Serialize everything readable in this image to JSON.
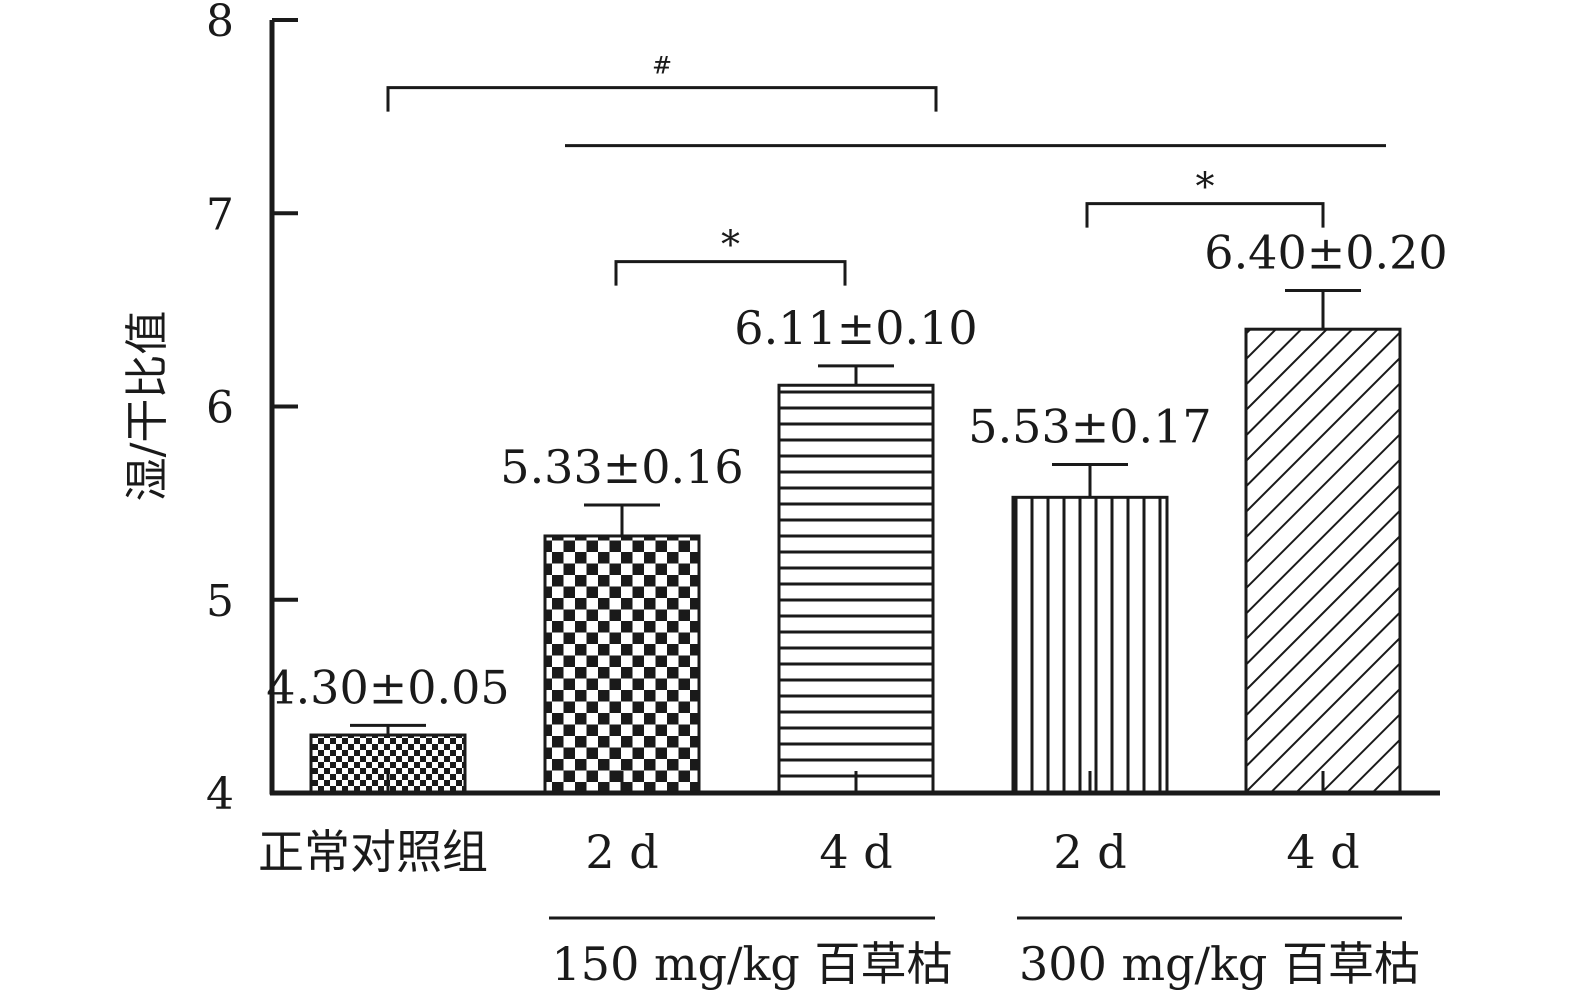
{
  "chart_data": {
    "type": "bar",
    "title": "",
    "xlabel": "",
    "ylabel": "湿/干比值",
    "ylim": [
      4,
      8
    ],
    "yticks": [
      "4",
      "5",
      "6",
      "7",
      "8"
    ],
    "grid": false,
    "legend": "none",
    "categories": [
      "正常对照组",
      "2 d",
      "4 d",
      "2 d",
      "4 d"
    ],
    "values": [
      4.3,
      5.33,
      6.11,
      5.53,
      6.4
    ],
    "errors": [
      0.05,
      0.16,
      0.1,
      0.17,
      0.2
    ],
    "value_labels": [
      "4.30±0.05",
      "5.33±0.16",
      "6.11±0.10",
      "5.53±0.17",
      "6.40±0.20"
    ],
    "patterns": [
      "small-checker",
      "large-checker",
      "horizontal-lines",
      "vertical-lines",
      "diagonal-lines"
    ],
    "groups": [
      {
        "label": "150 mg/kg 百草枯",
        "from": 1,
        "to": 2
      },
      {
        "label": "300 mg/kg 百草枯",
        "from": 3,
        "to": 4
      }
    ],
    "significance": [
      {
        "from": 0,
        "to": 2,
        "label": "#",
        "level": 7.65
      },
      {
        "from": 1,
        "to": 4,
        "label": "",
        "level": 7.35
      },
      {
        "from": 1,
        "to": 2,
        "label": "*",
        "level": 6.75
      },
      {
        "from": 3,
        "to": 4,
        "label": "*",
        "level": 7.05
      }
    ],
    "colors": {
      "ink": "#1a1a1a",
      "background": "#ffffff"
    }
  }
}
